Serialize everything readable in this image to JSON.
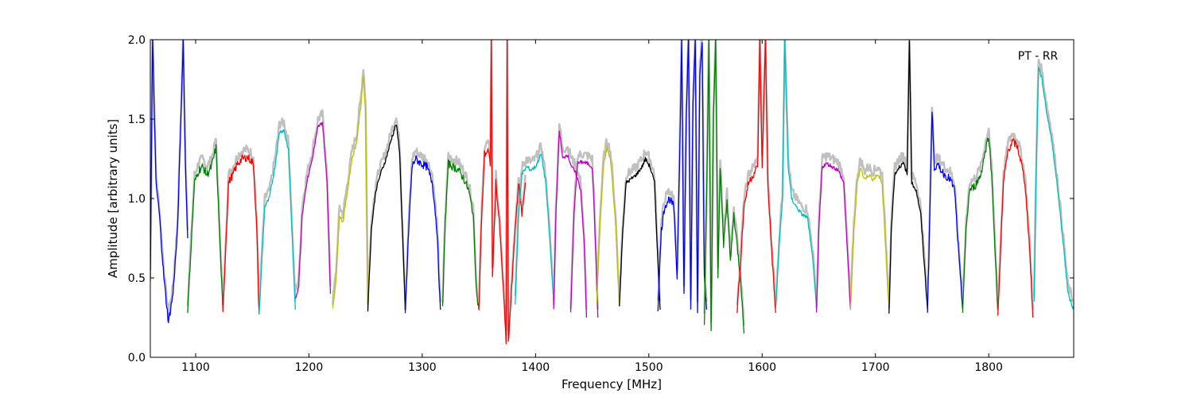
{
  "chart_data": {
    "type": "line",
    "title": "",
    "annotation": "PT - RR",
    "xlabel": "Frequency [MHz]",
    "ylabel": "Amplitude [arbitrary units]",
    "xlim": [
      1060,
      1875
    ],
    "ylim": [
      0.0,
      2.0
    ],
    "xticks": [
      1100,
      1200,
      1300,
      1400,
      1500,
      1600,
      1700,
      1800
    ],
    "yticks": [
      0.0,
      0.5,
      1.0,
      1.5,
      2.0
    ],
    "xtick_labels": [
      "1100",
      "1200",
      "1300",
      "1400",
      "1500",
      "1600",
      "1700",
      "1800"
    ],
    "ytick_labels": [
      "0.0",
      "0.5",
      "1.0",
      "1.5",
      "2.0"
    ],
    "grid": false,
    "background_color": "#c0c0c0",
    "band_colors": [
      "#0000ff",
      "#008000",
      "#ff0000",
      "#00bfbf",
      "#bf00bf",
      "#bfbf00",
      "#000000"
    ],
    "bands": [
      {
        "color": "#0000ff",
        "points": [
          [
            1060,
            0.5
          ],
          [
            1062,
            2.0
          ],
          [
            1065,
            1.1
          ],
          [
            1068,
            0.9
          ],
          [
            1072,
            0.5
          ],
          [
            1076,
            0.22
          ],
          [
            1080,
            0.4
          ],
          [
            1084,
            0.8
          ],
          [
            1087,
            1.5
          ],
          [
            1089,
            2.0
          ],
          [
            1091,
            1.2
          ],
          [
            1093,
            0.75
          ]
        ]
      },
      {
        "color": "#008000",
        "points": [
          [
            1093,
            0.3
          ],
          [
            1096,
            0.7
          ],
          [
            1099,
            1.1
          ],
          [
            1103,
            1.18
          ],
          [
            1106,
            1.2
          ],
          [
            1110,
            1.15
          ],
          [
            1114,
            1.2
          ],
          [
            1118,
            1.32
          ],
          [
            1121,
            0.8
          ],
          [
            1124,
            0.3
          ]
        ]
      },
      {
        "color": "#ff0000",
        "points": [
          [
            1124,
            0.27
          ],
          [
            1126,
            0.6
          ],
          [
            1129,
            1.1
          ],
          [
            1133,
            1.15
          ],
          [
            1137,
            1.22
          ],
          [
            1141,
            1.25
          ],
          [
            1146,
            1.26
          ],
          [
            1151,
            1.22
          ],
          [
            1154,
            0.8
          ],
          [
            1156,
            0.27
          ]
        ]
      },
      {
        "color": "#00bfbf",
        "points": [
          [
            1156,
            0.27
          ],
          [
            1158,
            0.55
          ],
          [
            1161,
            0.95
          ],
          [
            1165,
            1.0
          ],
          [
            1170,
            1.2
          ],
          [
            1174,
            1.42
          ],
          [
            1178,
            1.43
          ],
          [
            1182,
            1.3
          ],
          [
            1185,
            0.8
          ],
          [
            1188,
            0.3
          ]
        ]
      },
      {
        "color": "#bf00bf",
        "points": [
          [
            1188,
            0.37
          ],
          [
            1191,
            0.45
          ],
          [
            1194,
            0.9
          ],
          [
            1198,
            1.1
          ],
          [
            1203,
            1.25
          ],
          [
            1208,
            1.45
          ],
          [
            1212,
            1.48
          ],
          [
            1216,
            1.1
          ],
          [
            1219,
            0.4
          ]
        ]
      },
      {
        "color": "#bfbf00",
        "points": [
          [
            1221,
            0.3
          ],
          [
            1224,
            0.5
          ],
          [
            1227,
            0.9
          ],
          [
            1230,
            0.85
          ],
          [
            1234,
            1.05
          ],
          [
            1238,
            1.25
          ],
          [
            1242,
            1.35
          ],
          [
            1246,
            1.6
          ],
          [
            1248,
            1.78
          ],
          [
            1250,
            1.55
          ],
          [
            1252,
            0.3
          ]
        ]
      },
      {
        "color": "#000000",
        "points": [
          [
            1252,
            0.3
          ],
          [
            1255,
            0.8
          ],
          [
            1259,
            1.05
          ],
          [
            1263,
            1.15
          ],
          [
            1268,
            1.25
          ],
          [
            1273,
            1.38
          ],
          [
            1277,
            1.47
          ],
          [
            1280,
            1.3
          ],
          [
            1283,
            0.7
          ],
          [
            1285,
            0.3
          ]
        ]
      },
      {
        "color": "#0000ff",
        "points": [
          [
            1285,
            0.27
          ],
          [
            1288,
            0.8
          ],
          [
            1291,
            1.2
          ],
          [
            1294,
            1.25
          ],
          [
            1299,
            1.22
          ],
          [
            1304,
            1.2
          ],
          [
            1309,
            1.1
          ],
          [
            1313,
            0.8
          ],
          [
            1316,
            0.3
          ]
        ]
      },
      {
        "color": "#008000",
        "points": [
          [
            1318,
            0.3
          ],
          [
            1320,
            0.8
          ],
          [
            1323,
            1.22
          ],
          [
            1327,
            1.2
          ],
          [
            1332,
            1.18
          ],
          [
            1337,
            1.12
          ],
          [
            1341,
            1.05
          ],
          [
            1345,
            0.9
          ],
          [
            1348,
            0.4
          ],
          [
            1350,
            0.3
          ]
        ]
      },
      {
        "color": "#ff0000",
        "points": [
          [
            1350,
            0.28
          ],
          [
            1352,
            0.8
          ],
          [
            1355,
            1.28
          ],
          [
            1358,
            1.3
          ],
          [
            1360,
            1.22
          ],
          [
            1361,
            2.0
          ],
          [
            1362,
            0.5
          ],
          [
            1365,
            1.1
          ],
          [
            1368,
            0.85
          ],
          [
            1371,
            0.5
          ],
          [
            1374,
            0.1
          ],
          [
            1375,
            2.0
          ],
          [
            1376,
            0.08
          ],
          [
            1379,
            0.45
          ],
          [
            1382,
            0.8
          ],
          [
            1385,
            1.1
          ],
          [
            1388,
            0.9
          ],
          [
            1391,
            1.1
          ]
        ]
      },
      {
        "color": "#00bfbf",
        "points": [
          [
            1382,
            0.33
          ],
          [
            1385,
            0.9
          ],
          [
            1388,
            1.15
          ],
          [
            1392,
            1.2
          ],
          [
            1396,
            1.18
          ],
          [
            1400,
            1.2
          ],
          [
            1405,
            1.28
          ],
          [
            1409,
            1.1
          ],
          [
            1412,
            0.8
          ],
          [
            1416,
            0.35
          ]
        ]
      },
      {
        "color": "#bf00bf",
        "points": [
          [
            1416,
            0.3
          ],
          [
            1418,
            0.9
          ],
          [
            1421,
            1.43
          ],
          [
            1424,
            1.25
          ],
          [
            1428,
            1.28
          ],
          [
            1432,
            1.2
          ],
          [
            1436,
            1.15
          ],
          [
            1440,
            1.05
          ],
          [
            1443,
            0.7
          ],
          [
            1445,
            0.25
          ]
        ]
      },
      {
        "color": "#bf00bf",
        "points": [
          [
            1431,
            0.28
          ],
          [
            1434,
            0.9
          ],
          [
            1437,
            1.22
          ],
          [
            1441,
            1.23
          ],
          [
            1446,
            1.22
          ],
          [
            1450,
            1.2
          ],
          [
            1452,
            0.9
          ],
          [
            1455,
            0.25
          ]
        ]
      },
      {
        "color": "#bfbf00",
        "points": [
          [
            1454,
            0.35
          ],
          [
            1457,
            0.85
          ],
          [
            1460,
            1.2
          ],
          [
            1463,
            1.32
          ],
          [
            1466,
            1.25
          ],
          [
            1468,
            1.1
          ],
          [
            1471,
            0.8
          ],
          [
            1474,
            0.32
          ]
        ]
      },
      {
        "color": "#000000",
        "points": [
          [
            1474,
            0.32
          ],
          [
            1477,
            0.8
          ],
          [
            1480,
            1.1
          ],
          [
            1484,
            1.12
          ],
          [
            1489,
            1.15
          ],
          [
            1494,
            1.2
          ],
          [
            1497,
            1.25
          ],
          [
            1501,
            1.2
          ],
          [
            1505,
            1.1
          ],
          [
            1508,
            0.6
          ],
          [
            1510,
            0.3
          ]
        ]
      },
      {
        "color": "#0000ff",
        "points": [
          [
            1508,
            0.3
          ],
          [
            1511,
            0.8
          ],
          [
            1514,
            0.95
          ],
          [
            1518,
            1.0
          ],
          [
            1522,
            0.95
          ],
          [
            1525,
            0.5
          ],
          [
            1527,
            1.2
          ],
          [
            1529,
            2.0
          ],
          [
            1531,
            0.4
          ],
          [
            1533,
            1.5
          ],
          [
            1535,
            2.0
          ],
          [
            1537,
            0.3
          ],
          [
            1539,
            1.6
          ],
          [
            1541,
            2.0
          ],
          [
            1543,
            0.3
          ],
          [
            1545,
            1.8
          ],
          [
            1547,
            2.0
          ],
          [
            1549,
            0.5
          ],
          [
            1551,
            0.3
          ]
        ]
      },
      {
        "color": "#008000",
        "points": [
          [
            1549,
            0.2
          ],
          [
            1551,
            1.0
          ],
          [
            1553,
            2.0
          ],
          [
            1555,
            0.15
          ],
          [
            1557,
            1.5
          ],
          [
            1559,
            2.0
          ],
          [
            1561,
            0.5
          ],
          [
            1563,
            1.2
          ],
          [
            1566,
            0.7
          ],
          [
            1569,
            1.0
          ],
          [
            1572,
            0.6
          ],
          [
            1575,
            0.9
          ],
          [
            1578,
            0.7
          ],
          [
            1581,
            0.5
          ],
          [
            1584,
            0.15
          ]
        ]
      },
      {
        "color": "#ff0000",
        "points": [
          [
            1578,
            0.3
          ],
          [
            1581,
            0.6
          ],
          [
            1584,
            0.95
          ],
          [
            1588,
            1.1
          ],
          [
            1592,
            1.15
          ],
          [
            1596,
            1.2
          ],
          [
            1598,
            2.0
          ],
          [
            1600,
            1.2
          ],
          [
            1603,
            2.0
          ],
          [
            1605,
            1.1
          ],
          [
            1609,
            0.6
          ],
          [
            1612,
            0.28
          ]
        ]
      },
      {
        "color": "#00bfbf",
        "points": [
          [
            1612,
            0.3
          ],
          [
            1615,
            0.7
          ],
          [
            1618,
            1.0
          ],
          [
            1620,
            2.0
          ],
          [
            1623,
            1.2
          ],
          [
            1626,
            1.0
          ],
          [
            1630,
            0.95
          ],
          [
            1635,
            0.9
          ],
          [
            1640,
            0.88
          ],
          [
            1645,
            0.6
          ],
          [
            1648,
            0.3
          ]
        ]
      },
      {
        "color": "#bf00bf",
        "points": [
          [
            1648,
            0.27
          ],
          [
            1650,
            0.8
          ],
          [
            1653,
            1.2
          ],
          [
            1657,
            1.22
          ],
          [
            1662,
            1.2
          ],
          [
            1667,
            1.18
          ],
          [
            1672,
            1.1
          ],
          [
            1675,
            0.7
          ],
          [
            1678,
            0.3
          ]
        ]
      },
      {
        "color": "#bfbf00",
        "points": [
          [
            1678,
            0.3
          ],
          [
            1681,
            0.8
          ],
          [
            1684,
            1.1
          ],
          [
            1687,
            1.2
          ],
          [
            1690,
            1.12
          ],
          [
            1694,
            1.15
          ],
          [
            1698,
            1.12
          ],
          [
            1702,
            1.15
          ],
          [
            1706,
            1.1
          ],
          [
            1709,
            0.7
          ],
          [
            1712,
            0.3
          ]
        ]
      },
      {
        "color": "#000000",
        "points": [
          [
            1712,
            0.28
          ],
          [
            1714,
            0.8
          ],
          [
            1717,
            1.15
          ],
          [
            1721,
            1.2
          ],
          [
            1725,
            1.22
          ],
          [
            1728,
            1.15
          ],
          [
            1730,
            2.0
          ],
          [
            1732,
            1.1
          ],
          [
            1736,
            1.05
          ],
          [
            1740,
            0.9
          ],
          [
            1743,
            0.6
          ],
          [
            1746,
            0.3
          ]
        ]
      },
      {
        "color": "#0000ff",
        "points": [
          [
            1746,
            0.3
          ],
          [
            1748,
            0.9
          ],
          [
            1750,
            1.55
          ],
          [
            1752,
            1.2
          ],
          [
            1756,
            1.2
          ],
          [
            1761,
            1.15
          ],
          [
            1766,
            1.12
          ],
          [
            1770,
            1.05
          ],
          [
            1773,
            0.7
          ],
          [
            1777,
            0.3
          ]
        ]
      },
      {
        "color": "#008000",
        "points": [
          [
            1777,
            0.3
          ],
          [
            1780,
            0.8
          ],
          [
            1783,
            1.05
          ],
          [
            1788,
            1.08
          ],
          [
            1793,
            1.15
          ],
          [
            1797,
            1.3
          ],
          [
            1800,
            1.4
          ],
          [
            1803,
            1.1
          ],
          [
            1806,
            0.6
          ],
          [
            1808,
            0.3
          ]
        ]
      },
      {
        "color": "#ff0000",
        "points": [
          [
            1808,
            0.25
          ],
          [
            1810,
            0.6
          ],
          [
            1813,
            1.1
          ],
          [
            1817,
            1.3
          ],
          [
            1821,
            1.36
          ],
          [
            1825,
            1.33
          ],
          [
            1828,
            1.25
          ],
          [
            1832,
            1.1
          ],
          [
            1836,
            0.7
          ],
          [
            1839,
            0.25
          ]
        ]
      },
      {
        "color": "#00bfbf",
        "points": [
          [
            1840,
            0.35
          ],
          [
            1842,
            1.2
          ],
          [
            1844,
            1.83
          ],
          [
            1847,
            1.75
          ],
          [
            1851,
            1.55
          ],
          [
            1856,
            1.35
          ],
          [
            1861,
            1.05
          ],
          [
            1866,
            0.7
          ],
          [
            1870,
            0.4
          ],
          [
            1875,
            0.3
          ]
        ]
      }
    ]
  }
}
